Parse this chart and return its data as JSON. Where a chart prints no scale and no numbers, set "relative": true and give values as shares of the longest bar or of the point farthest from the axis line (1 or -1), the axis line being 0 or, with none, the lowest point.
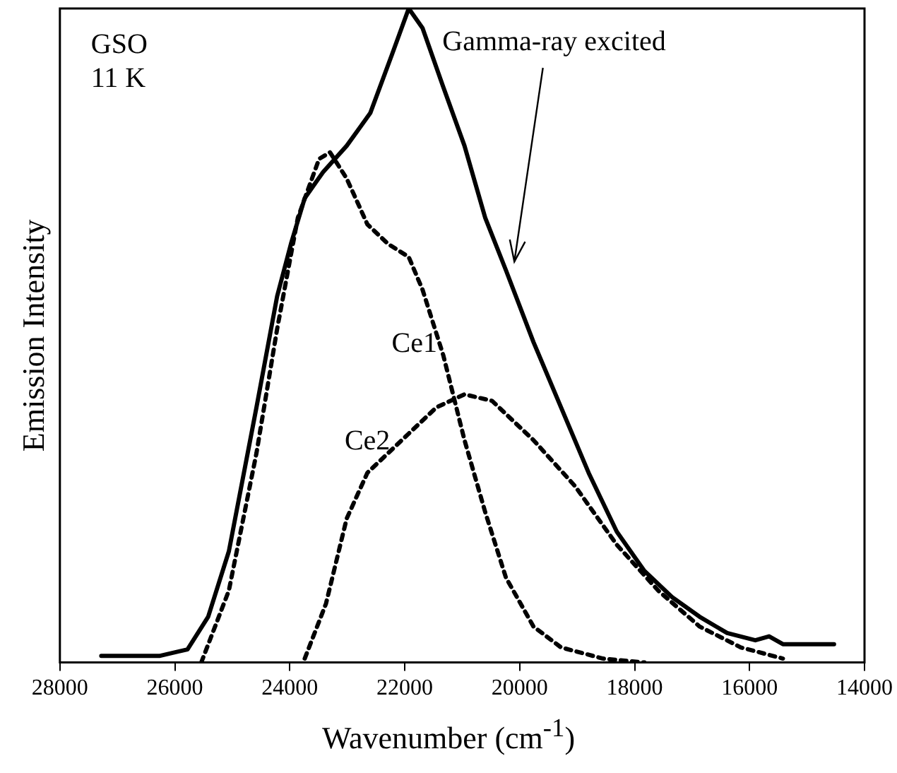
{
  "chart_data": {
    "type": "line",
    "relative": true,
    "xlabel": "Wavenumber (cm$^{-1}$)",
    "ylabel": "Emission Intensity",
    "xlim": [
      28000,
      14000
    ],
    "xticks": [
      28000,
      26000,
      24000,
      22000,
      20000,
      18000,
      16000,
      14000
    ],
    "grid": false,
    "legend": false,
    "marker": "none",
    "annotations": [
      "GSO",
      "11 K"
    ],
    "series": [
      {
        "name": "Gamma-ray excited",
        "color": "#000000",
        "line_style": "solid",
        "x": [
          27280,
          26270,
          25780,
          25420,
          25060,
          24580,
          24220,
          23980,
          23740,
          23420,
          23010,
          22600,
          22220,
          21930,
          21690,
          21330,
          20960,
          20600,
          20240,
          19760,
          19280,
          18800,
          18310,
          17830,
          17350,
          16870,
          16390,
          15900,
          15660,
          15420,
          14940,
          14530
        ],
        "values": [
          0.01,
          0.01,
          0.02,
          0.07,
          0.17,
          0.39,
          0.56,
          0.64,
          0.71,
          0.75,
          0.79,
          0.84,
          0.93,
          1.0,
          0.97,
          0.88,
          0.79,
          0.68,
          0.6,
          0.49,
          0.39,
          0.29,
          0.2,
          0.14,
          0.1,
          0.07,
          0.045,
          0.034,
          0.04,
          0.028,
          0.028,
          0.028
        ]
      },
      {
        "name": "Ce1",
        "color": "#000000",
        "line_style": "dotted",
        "x": [
          25540,
          25060,
          24580,
          24220,
          23860,
          23490,
          23300,
          23010,
          22650,
          22290,
          21930,
          21690,
          21330,
          20960,
          20600,
          20240,
          19760,
          19280,
          18550,
          17830
        ],
        "values": [
          0,
          0.11,
          0.32,
          0.51,
          0.68,
          0.77,
          0.78,
          0.74,
          0.67,
          0.64,
          0.62,
          0.57,
          0.47,
          0.34,
          0.23,
          0.13,
          0.055,
          0.023,
          0.006,
          0
        ]
      },
      {
        "name": "Ce2",
        "color": "#000000",
        "line_style": "dotted",
        "x": [
          23740,
          23370,
          23010,
          22650,
          22290,
          21930,
          21450,
          20960,
          20480,
          19760,
          19040,
          18310,
          17590,
          16870,
          16150,
          15420
        ],
        "values": [
          0.006,
          0.09,
          0.22,
          0.29,
          0.32,
          0.35,
          0.39,
          0.41,
          0.4,
          0.34,
          0.27,
          0.18,
          0.11,
          0.055,
          0.023,
          0.006
        ]
      }
    ]
  }
}
